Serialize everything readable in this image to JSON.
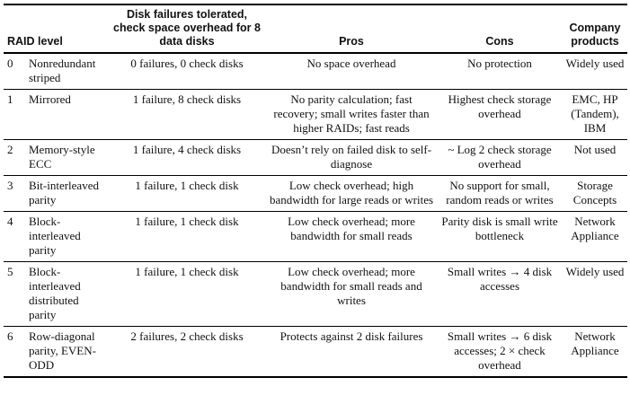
{
  "headers": {
    "raid_level": "RAID level",
    "failures": "Disk failures tolerated, check space overhead for 8 data disks",
    "pros": "Pros",
    "cons": "Cons",
    "products": "Company products"
  },
  "rows": [
    {
      "num": "0",
      "level": "Nonredundant striped",
      "failures": "0 failures, 0 check disks",
      "pros": "No space overhead",
      "cons": "No protection",
      "products": "Widely used"
    },
    {
      "num": "1",
      "level": "Mirrored",
      "failures": "1 failure, 8 check disks",
      "pros": "No parity calculation; fast recovery; small writes faster than higher RAIDs; fast reads",
      "cons": "Highest check storage overhead",
      "products": "EMC, HP (Tandem), IBM"
    },
    {
      "num": "2",
      "level": "Memory-style ECC",
      "failures": "1 failure, 4 check disks",
      "pros": "Doesn’t rely on failed disk to self-diagnose",
      "cons": "~ Log 2 check storage overhead",
      "products": "Not used"
    },
    {
      "num": "3",
      "level": "Bit-interleaved parity",
      "failures": "1 failure, 1 check disk",
      "pros": "Low check overhead; high bandwidth for large reads or writes",
      "cons": "No support for small, random reads or writes",
      "products": "Storage Concepts"
    },
    {
      "num": "4",
      "level": "Block-interleaved parity",
      "failures": "1 failure, 1 check disk",
      "pros": "Low check overhead; more bandwidth for small reads",
      "cons": "Parity disk is small write bottleneck",
      "products": "Network Appliance"
    },
    {
      "num": "5",
      "level": "Block-interleaved distributed parity",
      "failures": "1 failure, 1 check disk",
      "pros": "Low check overhead; more bandwidth for small reads and writes",
      "cons": "Small writes → 4 disk accesses",
      "products": "Widely used"
    },
    {
      "num": "6",
      "level": "Row-diagonal parity, EVEN-ODD",
      "failures": "2 failures, 2 check disks",
      "pros": "Protects against 2 disk failures",
      "cons": "Small writes → 6 disk accesses; 2 × check overhead",
      "products": "Network Appliance"
    }
  ]
}
